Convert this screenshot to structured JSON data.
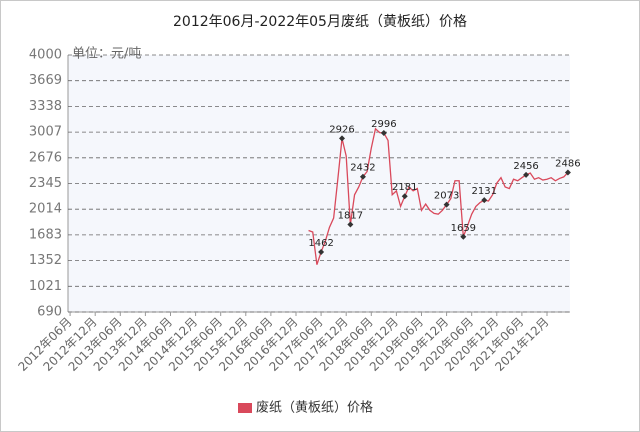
{
  "chart_data": {
    "type": "line",
    "title": "2012年06月-2022年05月废纸（黄板纸）价格",
    "y_unit_label": "单位：元/吨",
    "categories": [
      "2012年06月",
      null,
      null,
      null,
      null,
      null,
      "2012年12月",
      null,
      null,
      null,
      null,
      null,
      "2013年06月",
      null,
      null,
      null,
      null,
      null,
      "2013年12月",
      null,
      null,
      null,
      null,
      null,
      "2014年06月",
      null,
      null,
      null,
      null,
      null,
      "2014年12月",
      null,
      null,
      null,
      null,
      null,
      "2015年06月",
      null,
      null,
      null,
      null,
      null,
      "2015年12月",
      null,
      null,
      null,
      null,
      null,
      "2016年06月",
      null,
      null,
      null,
      null,
      null,
      "2016年12月",
      null,
      null,
      null,
      null,
      null,
      "2017年06月",
      null,
      null,
      null,
      null,
      null,
      "2017年12月",
      null,
      null,
      null,
      null,
      null,
      "2018年06月",
      null,
      null,
      null,
      null,
      null,
      "2018年12月",
      null,
      null,
      null,
      null,
      null,
      "2019年06月",
      null,
      null,
      null,
      null,
      null,
      "2019年12月",
      null,
      null,
      null,
      null,
      null,
      "2020年06月",
      null,
      null,
      null,
      null,
      null,
      "2020年12月",
      null,
      null,
      null,
      null,
      null,
      "2021年06月",
      null,
      null,
      null,
      null,
      null,
      "2021年12月",
      null,
      null,
      null,
      null,
      null
    ],
    "series": [
      {
        "name": "废纸（黄板纸）价格",
        "color": "#d9495b",
        "values": [
          null,
          null,
          null,
          null,
          null,
          null,
          null,
          null,
          null,
          null,
          null,
          null,
          null,
          null,
          null,
          null,
          null,
          null,
          null,
          null,
          null,
          null,
          null,
          null,
          null,
          null,
          null,
          null,
          null,
          null,
          null,
          null,
          null,
          null,
          null,
          null,
          null,
          null,
          null,
          null,
          null,
          null,
          null,
          null,
          null,
          null,
          null,
          null,
          null,
          null,
          null,
          null,
          null,
          null,
          null,
          null,
          null,
          1740,
          1720,
          1300,
          1462,
          1600,
          1780,
          1900,
          2400,
          2926,
          2700,
          1817,
          2200,
          2300,
          2432,
          2500,
          2800,
          3050,
          3000,
          2996,
          2900,
          2200,
          2250,
          2050,
          2181,
          2300,
          2250,
          2280,
          2000,
          2080,
          2000,
          1960,
          1950,
          2000,
          2073,
          2150,
          2380,
          2380,
          1659,
          1800,
          1950,
          2050,
          2100,
          2131,
          2120,
          2200,
          2350,
          2420,
          2300,
          2280,
          2400,
          2380,
          2420,
          2456,
          2480,
          2400,
          2420,
          2390,
          2400,
          2420,
          2380,
          2410,
          2430,
          2486
        ],
        "value_labels": [
          null,
          null,
          null,
          null,
          null,
          null,
          null,
          null,
          null,
          null,
          null,
          null,
          null,
          null,
          null,
          null,
          null,
          null,
          null,
          null,
          null,
          null,
          null,
          null,
          null,
          null,
          null,
          null,
          null,
          null,
          null,
          null,
          null,
          null,
          null,
          null,
          null,
          null,
          null,
          null,
          null,
          null,
          null,
          null,
          null,
          null,
          null,
          null,
          null,
          null,
          null,
          null,
          null,
          null,
          null,
          null,
          null,
          null,
          null,
          null,
          "1462",
          null,
          null,
          null,
          null,
          "2926",
          null,
          "1817",
          null,
          null,
          "2432",
          null,
          null,
          null,
          null,
          "2996",
          null,
          null,
          null,
          null,
          "2181",
          null,
          null,
          null,
          null,
          null,
          null,
          null,
          null,
          null,
          "2073",
          null,
          null,
          null,
          "1659",
          null,
          null,
          null,
          null,
          "2131",
          null,
          null,
          null,
          null,
          null,
          null,
          null,
          null,
          null,
          "2456",
          null,
          null,
          null,
          null,
          null,
          null,
          null,
          null,
          null,
          "2486"
        ]
      }
    ],
    "ylim": [
      690,
      4000
    ],
    "yticks": [
      690,
      1021,
      1352,
      1683,
      2014,
      2345,
      2676,
      3007,
      3338,
      3669,
      4000
    ],
    "grid": true,
    "legend": "bottom"
  }
}
